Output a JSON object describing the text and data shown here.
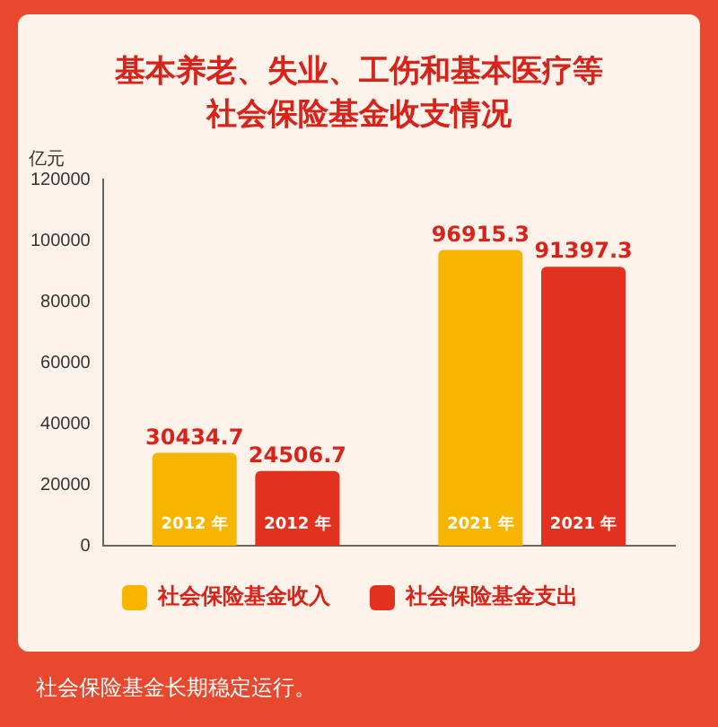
{
  "chart_data": {
    "type": "bar",
    "title": "基本养老、失业、工伤和基本医疗等社会保险基金收支情况",
    "ylabel": "亿元",
    "categories": [
      "2012 年",
      "2021 年"
    ],
    "series": [
      {
        "name": "社会保险基金收入",
        "color": "#f7b500",
        "values": [
          30434.7,
          96915.3
        ]
      },
      {
        "name": "社会保险基金支出",
        "color": "#e2321f",
        "values": [
          24506.7,
          91397.3
        ]
      }
    ],
    "ylim": [
      0,
      120000
    ],
    "yticks": [
      0,
      20000,
      40000,
      60000,
      80000,
      100000,
      120000
    ],
    "grid": false,
    "legend": "bottom",
    "data_labels": true,
    "annotations": [
      "社会保险基金长期稳定运行。"
    ]
  }
}
